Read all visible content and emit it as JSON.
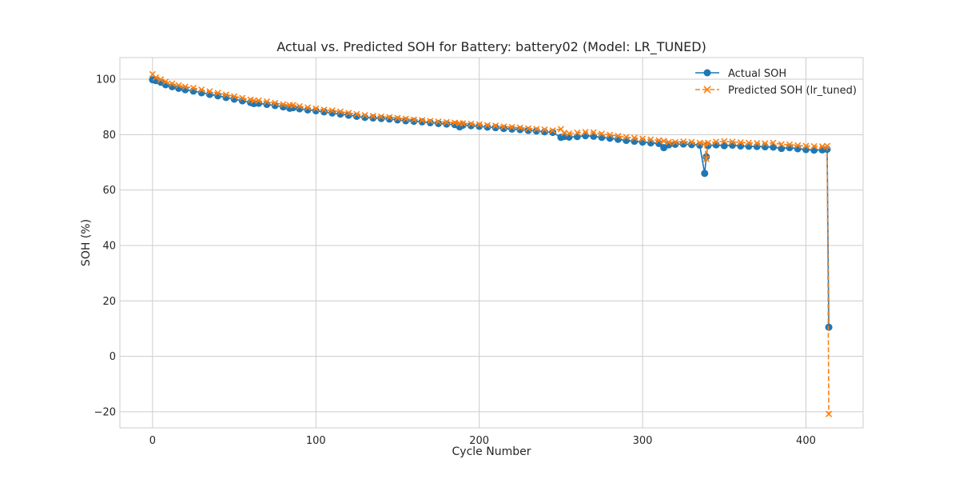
{
  "chart_data": {
    "type": "line",
    "title": "Actual vs. Predicted SOH for Battery: battery02 (Model: LR_TUNED)",
    "xlabel": "Cycle Number",
    "ylabel": "SOH (%)",
    "xlim": [
      -20,
      435
    ],
    "ylim": [
      -25.8,
      107.8
    ],
    "xticks": [
      0,
      100,
      200,
      300,
      400
    ],
    "yticks": [
      -20,
      0,
      20,
      40,
      60,
      80,
      100
    ],
    "xtick_labels": [
      "0",
      "100",
      "200",
      "300",
      "400"
    ],
    "ytick_labels": [
      "−20",
      "0",
      "20",
      "40",
      "60",
      "80",
      "100"
    ],
    "grid": true,
    "legend_position": "top-right",
    "series": [
      {
        "name": "Actual SOH",
        "color": "#1f77b4",
        "marker": "circle",
        "line_style": "solid",
        "x": [
          0,
          2,
          5,
          8,
          12,
          16,
          20,
          25,
          30,
          35,
          40,
          45,
          50,
          55,
          60,
          62,
          65,
          70,
          75,
          80,
          84,
          86,
          90,
          95,
          100,
          105,
          110,
          115,
          120,
          125,
          130,
          135,
          140,
          145,
          150,
          155,
          160,
          165,
          170,
          175,
          180,
          185,
          188,
          190,
          195,
          200,
          205,
          210,
          215,
          220,
          225,
          230,
          235,
          240,
          245,
          250,
          252,
          255,
          260,
          265,
          270,
          275,
          280,
          285,
          290,
          295,
          300,
          305,
          310,
          313,
          316,
          320,
          325,
          330,
          335,
          338,
          339,
          340,
          345,
          350,
          355,
          360,
          365,
          370,
          375,
          380,
          385,
          390,
          395,
          400,
          405,
          410,
          413,
          414
        ],
        "y": [
          99.8,
          99.5,
          98.9,
          98.0,
          97.3,
          96.7,
          96.2,
          95.7,
          95.1,
          94.5,
          94.0,
          93.4,
          92.8,
          92.2,
          91.6,
          91.2,
          91.3,
          90.9,
          90.5,
          90.0,
          89.5,
          89.7,
          89.3,
          88.9,
          88.6,
          88.2,
          87.8,
          87.4,
          87.0,
          86.6,
          86.2,
          86.0,
          85.8,
          85.6,
          85.3,
          85.0,
          84.8,
          84.6,
          84.3,
          84.0,
          83.8,
          83.6,
          82.8,
          83.4,
          83.2,
          83.0,
          82.7,
          82.5,
          82.2,
          82.0,
          81.8,
          81.5,
          81.3,
          81.0,
          80.8,
          79.0,
          79.3,
          79.1,
          79.3,
          79.6,
          79.4,
          79.0,
          78.7,
          78.3,
          77.9,
          77.6,
          77.3,
          77.0,
          76.8,
          75.3,
          76.3,
          76.5,
          76.6,
          76.4,
          76.2,
          66.0,
          72.0,
          76.0,
          76.3,
          76.0,
          76.2,
          75.9,
          75.8,
          75.7,
          75.6,
          75.5,
          75.0,
          75.3,
          74.9,
          74.6,
          74.4,
          74.5,
          74.7,
          10.5
        ]
      },
      {
        "name": "Predicted SOH (lr_tuned)",
        "color": "#ff7f0e",
        "marker": "x",
        "line_style": "dashed",
        "x": [
          0,
          2,
          5,
          8,
          12,
          16,
          20,
          25,
          30,
          35,
          40,
          45,
          50,
          55,
          60,
          62,
          65,
          70,
          75,
          80,
          84,
          86,
          90,
          95,
          100,
          105,
          110,
          115,
          120,
          125,
          130,
          135,
          140,
          145,
          150,
          155,
          160,
          165,
          170,
          175,
          180,
          185,
          188,
          190,
          195,
          200,
          205,
          210,
          215,
          220,
          225,
          230,
          235,
          240,
          245,
          250,
          252,
          255,
          260,
          265,
          270,
          275,
          280,
          285,
          290,
          295,
          300,
          305,
          310,
          313,
          316,
          320,
          325,
          330,
          335,
          338,
          339,
          340,
          345,
          350,
          355,
          360,
          365,
          370,
          375,
          380,
          385,
          390,
          395,
          400,
          405,
          410,
          413,
          414
        ],
        "y": [
          101.8,
          100.6,
          99.9,
          99.1,
          98.4,
          97.8,
          97.3,
          96.8,
          96.2,
          95.6,
          95.0,
          94.4,
          93.8,
          93.2,
          92.6,
          92.3,
          92.3,
          91.9,
          91.4,
          90.9,
          90.6,
          90.6,
          90.2,
          89.8,
          89.4,
          89.0,
          88.7,
          88.3,
          87.8,
          87.4,
          87.0,
          86.7,
          86.5,
          86.3,
          86.0,
          85.7,
          85.4,
          85.2,
          84.9,
          84.7,
          84.5,
          84.3,
          84.1,
          84.1,
          83.9,
          83.7,
          83.4,
          83.2,
          82.9,
          82.7,
          82.5,
          82.2,
          82.0,
          81.8,
          81.5,
          82.0,
          80.6,
          80.4,
          80.7,
          80.9,
          80.8,
          80.3,
          79.9,
          79.5,
          79.1,
          78.8,
          78.5,
          78.2,
          77.9,
          77.7,
          77.3,
          77.3,
          77.5,
          77.3,
          77.0,
          76.8,
          71.2,
          77.0,
          77.4,
          77.6,
          77.4,
          77.2,
          77.0,
          76.9,
          76.8,
          77.0,
          76.5,
          76.4,
          76.1,
          75.9,
          75.8,
          75.7,
          75.9,
          -20.8
        ]
      }
    ]
  }
}
